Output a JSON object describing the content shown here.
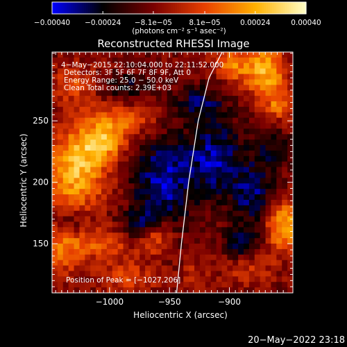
{
  "chart_data": {
    "type": "heatmap",
    "title": "Reconstructed RHESSI Image",
    "xlabel": "Heliocentric X (arcsec)",
    "ylabel": "Heliocentric Y (arcsec)",
    "xlim": [
      -1048,
      -847
    ],
    "ylim": [
      110,
      306
    ],
    "xticks": [
      -1000,
      -950,
      -900
    ],
    "xtick_labels": [
      "−1000",
      "−950",
      "−900"
    ],
    "yticks": [
      150,
      200,
      250
    ],
    "ytick_labels": [
      "150",
      "200",
      "250"
    ],
    "colorbar": {
      "range": [
        -0.0004,
        0.0004
      ],
      "ticks": [
        -0.0004,
        -0.00024,
        -8.1e-05,
        8.1e-05,
        0.00024,
        0.0004
      ],
      "tick_labels": [
        "−0.00040",
        "−0.00024",
        "−8.1e−05",
        "8.1e−05",
        "0.00024",
        "0.00040"
      ],
      "units": "(photons cm⁻² s⁻¹ asec⁻²)"
    },
    "colormap": [
      "#0000ff",
      "#000000",
      "#7a0000",
      "#e84000",
      "#ffb000",
      "#ffffc8"
    ],
    "annotations": [
      " 4−May−2015 22:10:04.000 to 22:11:52.000",
      "Detectors: 3F 5F 6F 7F 8F 9F, Att 0",
      "Energy Range: 25.0 − 50.0 keV",
      "Clean    Total counts: 2.39E+03"
    ],
    "peak_label": "Position of Peak = [−1027,206]",
    "limb_curve": [
      [
        -944,
        110
      ],
      [
        -940,
        150
      ],
      [
        -934,
        200
      ],
      [
        -926,
        250
      ],
      [
        -917,
        285
      ],
      [
        -906,
        306
      ]
    ],
    "blobs": [
      {
        "x": -1028,
        "y": 211,
        "sx": 18,
        "sy": 22,
        "v": 0.00036
      },
      {
        "x": -1005,
        "y": 232,
        "sx": 14,
        "sy": 10,
        "v": 0.00026
      },
      {
        "x": -992,
        "y": 250,
        "sx": 22,
        "sy": 9,
        "v": 0.0002
      },
      {
        "x": -1040,
        "y": 150,
        "sx": 13,
        "sy": 20,
        "v": 0.00022
      },
      {
        "x": -1005,
        "y": 150,
        "sx": 16,
        "sy": 9,
        "v": 0.00018
      },
      {
        "x": -962,
        "y": 155,
        "sx": 10,
        "sy": 10,
        "v": 0.00022
      },
      {
        "x": -985,
        "y": 122,
        "sx": 16,
        "sy": 10,
        "v": 0.00016
      },
      {
        "x": -870,
        "y": 290,
        "sx": 12,
        "sy": 16,
        "v": 0.00034
      },
      {
        "x": -898,
        "y": 296,
        "sx": 10,
        "sy": 10,
        "v": 0.00024
      },
      {
        "x": -858,
        "y": 262,
        "sx": 8,
        "sy": 9,
        "v": 0.0002
      },
      {
        "x": -855,
        "y": 165,
        "sx": 10,
        "sy": 14,
        "v": 0.00034
      },
      {
        "x": -885,
        "y": 130,
        "sx": 16,
        "sy": 10,
        "v": 0.00012
      },
      {
        "x": -930,
        "y": 125,
        "sx": 9,
        "sy": 8,
        "v": 0.0001
      },
      {
        "x": -1030,
        "y": 280,
        "sx": 12,
        "sy": 12,
        "v": 0.00016
      },
      {
        "x": -985,
        "y": 278,
        "sx": 12,
        "sy": 7,
        "v": -0.00016
      },
      {
        "x": -955,
        "y": 200,
        "sx": 18,
        "sy": 26,
        "v": -0.00026
      },
      {
        "x": -912,
        "y": 220,
        "sx": 16,
        "sy": 22,
        "v": -0.00024
      },
      {
        "x": -880,
        "y": 190,
        "sx": 12,
        "sy": 18,
        "v": -0.00022
      },
      {
        "x": -1035,
        "y": 168,
        "sx": 10,
        "sy": 8,
        "v": -0.0002
      },
      {
        "x": -975,
        "y": 165,
        "sx": 10,
        "sy": 8,
        "v": -0.00018
      },
      {
        "x": -890,
        "y": 150,
        "sx": 10,
        "sy": 10,
        "v": -0.0002
      },
      {
        "x": -925,
        "y": 265,
        "sx": 14,
        "sy": 10,
        "v": -0.00018
      },
      {
        "x": -866,
        "y": 230,
        "sx": 10,
        "sy": 12,
        "v": -0.00014
      }
    ],
    "grid": false
  },
  "footer": {
    "timestamp": "20−May−2022 23:18"
  }
}
